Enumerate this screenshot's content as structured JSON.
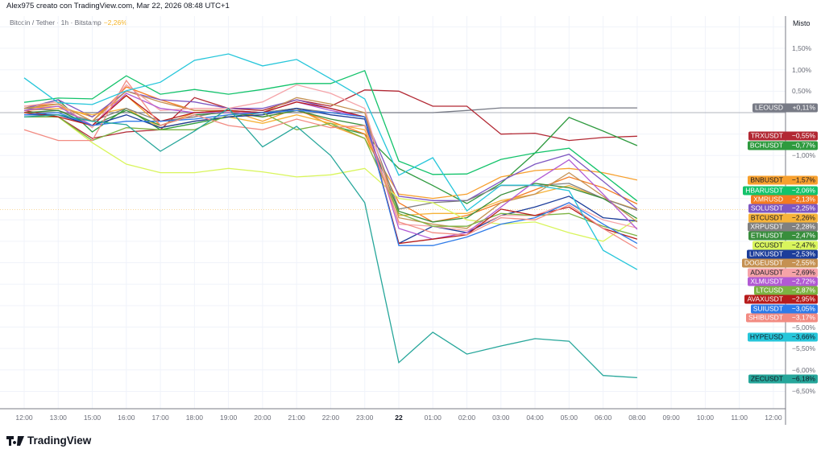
{
  "header": {
    "title": "Alex975 creato con TradingView.com, Mar 22, 2026 08:48 UTC+1"
  },
  "legend": {
    "symbol": "Bitcoin / Tether · 1h · Bitstamp",
    "change": "−2,26%"
  },
  "scale_mode": "Misto",
  "brand": "TradingView",
  "chart_data": {
    "type": "line",
    "x_ticks": [
      "12:00",
      "13:00",
      "15:00",
      "16:00",
      "17:00",
      "18:00",
      "19:00",
      "20:00",
      "21:00",
      "22:00",
      "23:00",
      "22",
      "01:00",
      "02:00",
      "03:00",
      "04:00",
      "05:00",
      "06:00",
      "08:00",
      "09:00",
      "10:00",
      "11:00",
      "12:00"
    ],
    "bold_tick": "22",
    "y_ticks": [
      {
        "v": 1.5,
        "t": "1,50%"
      },
      {
        "v": 1.0,
        "t": "1,00%"
      },
      {
        "v": 0.5,
        "t": "0,50%"
      },
      {
        "v": -1.0,
        "t": "−1,00%"
      },
      {
        "v": -5.0,
        "t": "−5,00%"
      },
      {
        "v": -5.5,
        "t": "−5,50%"
      },
      {
        "v": -6.0,
        "t": "−6,00%"
      },
      {
        "v": -6.5,
        "t": "−6,50%"
      }
    ],
    "ylim": [
      -7.0,
      2.3
    ],
    "unit": "%",
    "grid": true,
    "highlight_series": "BTCUSDT",
    "series": [
      {
        "name": "LEOUSD",
        "value": "+0,11%",
        "color": "#787b86",
        "text": "#fff",
        "values": [
          0,
          0,
          0,
          0,
          0,
          0,
          0,
          0,
          0,
          0,
          0,
          0,
          0,
          0.05,
          0.11,
          0.11,
          0.11,
          0.11,
          0.11
        ]
      },
      {
        "name": "TRXUSDT",
        "value": "−0,55%",
        "color": "#b22833",
        "text": "#fff",
        "values": [
          0.05,
          -0.1,
          -0.6,
          -0.45,
          -0.4,
          0.35,
          0.1,
          0.05,
          0.3,
          0.15,
          0.53,
          0.5,
          0.15,
          0.15,
          -0.5,
          -0.48,
          -0.65,
          -0.58,
          -0.55
        ]
      },
      {
        "name": "BCHUSDT",
        "value": "−0,77%",
        "color": "#2e9a3e",
        "text": "#fff",
        "values": [
          0.1,
          0.3,
          -0.45,
          0.1,
          -0.4,
          -0.25,
          -0.1,
          0,
          0.1,
          -0.3,
          -0.5,
          -1.3,
          -1.7,
          -2.12,
          -1.65,
          -0.94,
          -0.11,
          -0.43,
          -0.77
        ]
      },
      {
        "name": "BNBUSDT",
        "value": "−1,57%",
        "color": "#f7a02e",
        "text": "#131722",
        "values": [
          0.1,
          0.15,
          -0.1,
          0.4,
          -0.3,
          0,
          0.05,
          -0.2,
          0.1,
          -0.3,
          -0.6,
          -1.9,
          -2.0,
          -1.9,
          -1.5,
          -1.35,
          -1.3,
          -1.4,
          -1.57
        ]
      },
      {
        "name": "HBARUSDT",
        "value": "−2,06%",
        "color": "#13c36b",
        "text": "#fff",
        "values": [
          0.24,
          0.34,
          0.32,
          0.86,
          0.43,
          0.54,
          0.43,
          0.54,
          0.68,
          0.68,
          0.98,
          -1.13,
          -1.44,
          -1.43,
          -1.09,
          -0.94,
          -0.83,
          -1.44,
          -2.06
        ]
      },
      {
        "name": "XMRUSD",
        "value": "−2,13%",
        "color": "#f47b20",
        "text": "#fff",
        "values": [
          0.15,
          0.2,
          -0.2,
          0.6,
          0.3,
          0.05,
          0.05,
          -0.1,
          0.05,
          -0.2,
          -0.5,
          -2.1,
          -2.55,
          -2.4,
          -2.1,
          -1.8,
          -1.5,
          -1.75,
          -2.13
        ]
      },
      {
        "name": "SOLUSDT",
        "value": "−2,25%",
        "color": "#7e57c2",
        "text": "#fff",
        "values": [
          0.1,
          0.3,
          -0.1,
          0.5,
          0.3,
          0.25,
          0.1,
          0.1,
          0.3,
          0.1,
          -0.1,
          -1.95,
          -2.05,
          -2.05,
          -1.6,
          -1.2,
          -0.97,
          -1.6,
          -2.25
        ]
      },
      {
        "name": "BTCUSDT",
        "value": "−2,26%",
        "color": "#f6b33a",
        "text": "#131722",
        "values": [
          0.05,
          0.1,
          -0.05,
          0.1,
          -0.35,
          -0.2,
          -0.1,
          -0.25,
          -0.05,
          -0.25,
          -0.4,
          -2.4,
          -2.35,
          -2.35,
          -2.05,
          -1.9,
          -1.7,
          -2.0,
          -2.26
        ]
      },
      {
        "name": "XRPUSDT",
        "value": "−2,28%",
        "color": "#808080",
        "text": "#fff",
        "values": [
          0.1,
          0.05,
          -0.2,
          0.1,
          -0.2,
          -0.1,
          0.05,
          0,
          0.1,
          0,
          -0.1,
          -2.25,
          -2.1,
          -2.05,
          -1.7,
          -1.7,
          -1.65,
          -2.0,
          -2.28
        ]
      },
      {
        "name": "ETHUSDT",
        "value": "−2,47%",
        "color": "#388e3c",
        "text": "#fff",
        "values": [
          0,
          0.05,
          -0.3,
          0.05,
          -0.3,
          -0.05,
          0,
          -0.1,
          0.05,
          -0.15,
          -0.3,
          -2.3,
          -2.55,
          -2.45,
          -1.92,
          -1.65,
          -1.75,
          -2.0,
          -2.47
        ]
      },
      {
        "name": "CCUSDT",
        "value": "−2,47%",
        "color": "#d9f55c",
        "text": "#131722",
        "values": [
          0,
          -0.1,
          -0.7,
          -1.2,
          -1.4,
          -1.4,
          -1.3,
          -1.38,
          -1.5,
          -1.45,
          -1.3,
          -2.0,
          -2.1,
          -2.5,
          -2.6,
          -2.55,
          -2.8,
          -3.0,
          -2.47
        ]
      },
      {
        "name": "LINKUSDT",
        "value": "−2,53%",
        "color": "#1c3d9a",
        "text": "#fff",
        "values": [
          -0.05,
          -0.05,
          -0.3,
          -0.05,
          -0.35,
          -0.2,
          -0.1,
          -0.05,
          0.1,
          -0.05,
          -0.15,
          -3.05,
          -2.65,
          -2.8,
          -2.4,
          -2.2,
          -1.95,
          -2.45,
          -2.53
        ]
      },
      {
        "name": "DOGEUSDT",
        "value": "−2,55%",
        "color": "#c59152",
        "text": "#fff",
        "values": [
          0.1,
          0.2,
          -0.2,
          0.5,
          0.25,
          0.05,
          0.05,
          0,
          0.35,
          0.2,
          0,
          -2.45,
          -2.6,
          -2.7,
          -2.1,
          -1.9,
          -1.4,
          -1.95,
          -2.55
        ]
      },
      {
        "name": "ADAUSDT",
        "value": "−2,69%",
        "color": "#f5a3a8",
        "text": "#131722",
        "values": [
          0.15,
          0.25,
          -0.35,
          0.65,
          0.05,
          0.1,
          0.1,
          0.25,
          0.65,
          0.45,
          0.1,
          -2.6,
          -2.65,
          -2.75,
          -2.4,
          -2.4,
          -2.1,
          -2.5,
          -2.69
        ]
      },
      {
        "name": "XLMUSDT",
        "value": "−2,72%",
        "color": "#b15ad3",
        "text": "#fff",
        "values": [
          0.05,
          0.15,
          -0.3,
          0.45,
          0.1,
          0,
          0,
          0,
          0.25,
          0.05,
          -0.1,
          -2.7,
          -2.95,
          -2.8,
          -2.2,
          -1.6,
          -1.1,
          -1.9,
          -2.72
        ]
      },
      {
        "name": "LTCUSD",
        "value": "−2,87%",
        "color": "#7cb342",
        "text": "#fff",
        "values": [
          -0.1,
          -0.1,
          -0.65,
          -0.35,
          -0.4,
          -0.4,
          -0.05,
          0,
          -0.4,
          -0.25,
          -0.6,
          -2.35,
          -2.65,
          -2.65,
          -2.35,
          -2.4,
          -2.35,
          -2.65,
          -2.87
        ]
      },
      {
        "name": "AVAXUSDT",
        "value": "−2,95%",
        "color": "#b71c1c",
        "text": "#fff",
        "values": [
          0,
          -0.1,
          -0.3,
          0.4,
          -0.2,
          0,
          0.05,
          0,
          0.25,
          0.1,
          -0.1,
          -3.05,
          -2.95,
          -2.85,
          -2.25,
          -2.4,
          -2.2,
          -2.7,
          -2.95
        ]
      },
      {
        "name": "SUIUSDT",
        "value": "−3,05%",
        "color": "#2f7be8",
        "text": "#fff",
        "values": [
          -0.05,
          0,
          -0.3,
          -0.2,
          -0.2,
          -0.15,
          -0.05,
          0,
          0.05,
          0,
          -0.1,
          -3.1,
          -3.1,
          -2.9,
          -2.6,
          -2.45,
          -2.1,
          -2.6,
          -3.05
        ]
      },
      {
        "name": "SHIBUSDT",
        "value": "−3,17%",
        "color": "#f28b82",
        "text": "#fff",
        "values": [
          -0.4,
          -0.65,
          -0.65,
          0.75,
          -0.3,
          -0.05,
          -0.3,
          -0.4,
          -0.15,
          -0.35,
          -0.3,
          -2.55,
          -2.8,
          -2.85,
          -2.45,
          -2.5,
          -2.15,
          -2.7,
          -3.17
        ]
      },
      {
        "name": "HYPEUSD",
        "value": "−3,66%",
        "color": "#26c6da",
        "text": "#131722",
        "values": [
          0.81,
          0.23,
          0.19,
          0.51,
          0.71,
          1.22,
          1.37,
          1.09,
          1.24,
          0.79,
          0.32,
          -1.46,
          -1.05,
          -2.29,
          -1.69,
          -1.69,
          -1.82,
          -3.21,
          -3.66
        ]
      },
      {
        "name": "ZECUSDT",
        "value": "−6,18%",
        "color": "#26a69a",
        "text": "#131722",
        "values": [
          -0.1,
          -0.05,
          -0.2,
          -0.28,
          -0.9,
          -0.43,
          0.1,
          -0.8,
          -0.32,
          -1.0,
          -2.1,
          -5.83,
          -5.12,
          -5.63,
          -5.44,
          -5.27,
          -5.33,
          -6.13,
          -6.18
        ]
      }
    ]
  }
}
